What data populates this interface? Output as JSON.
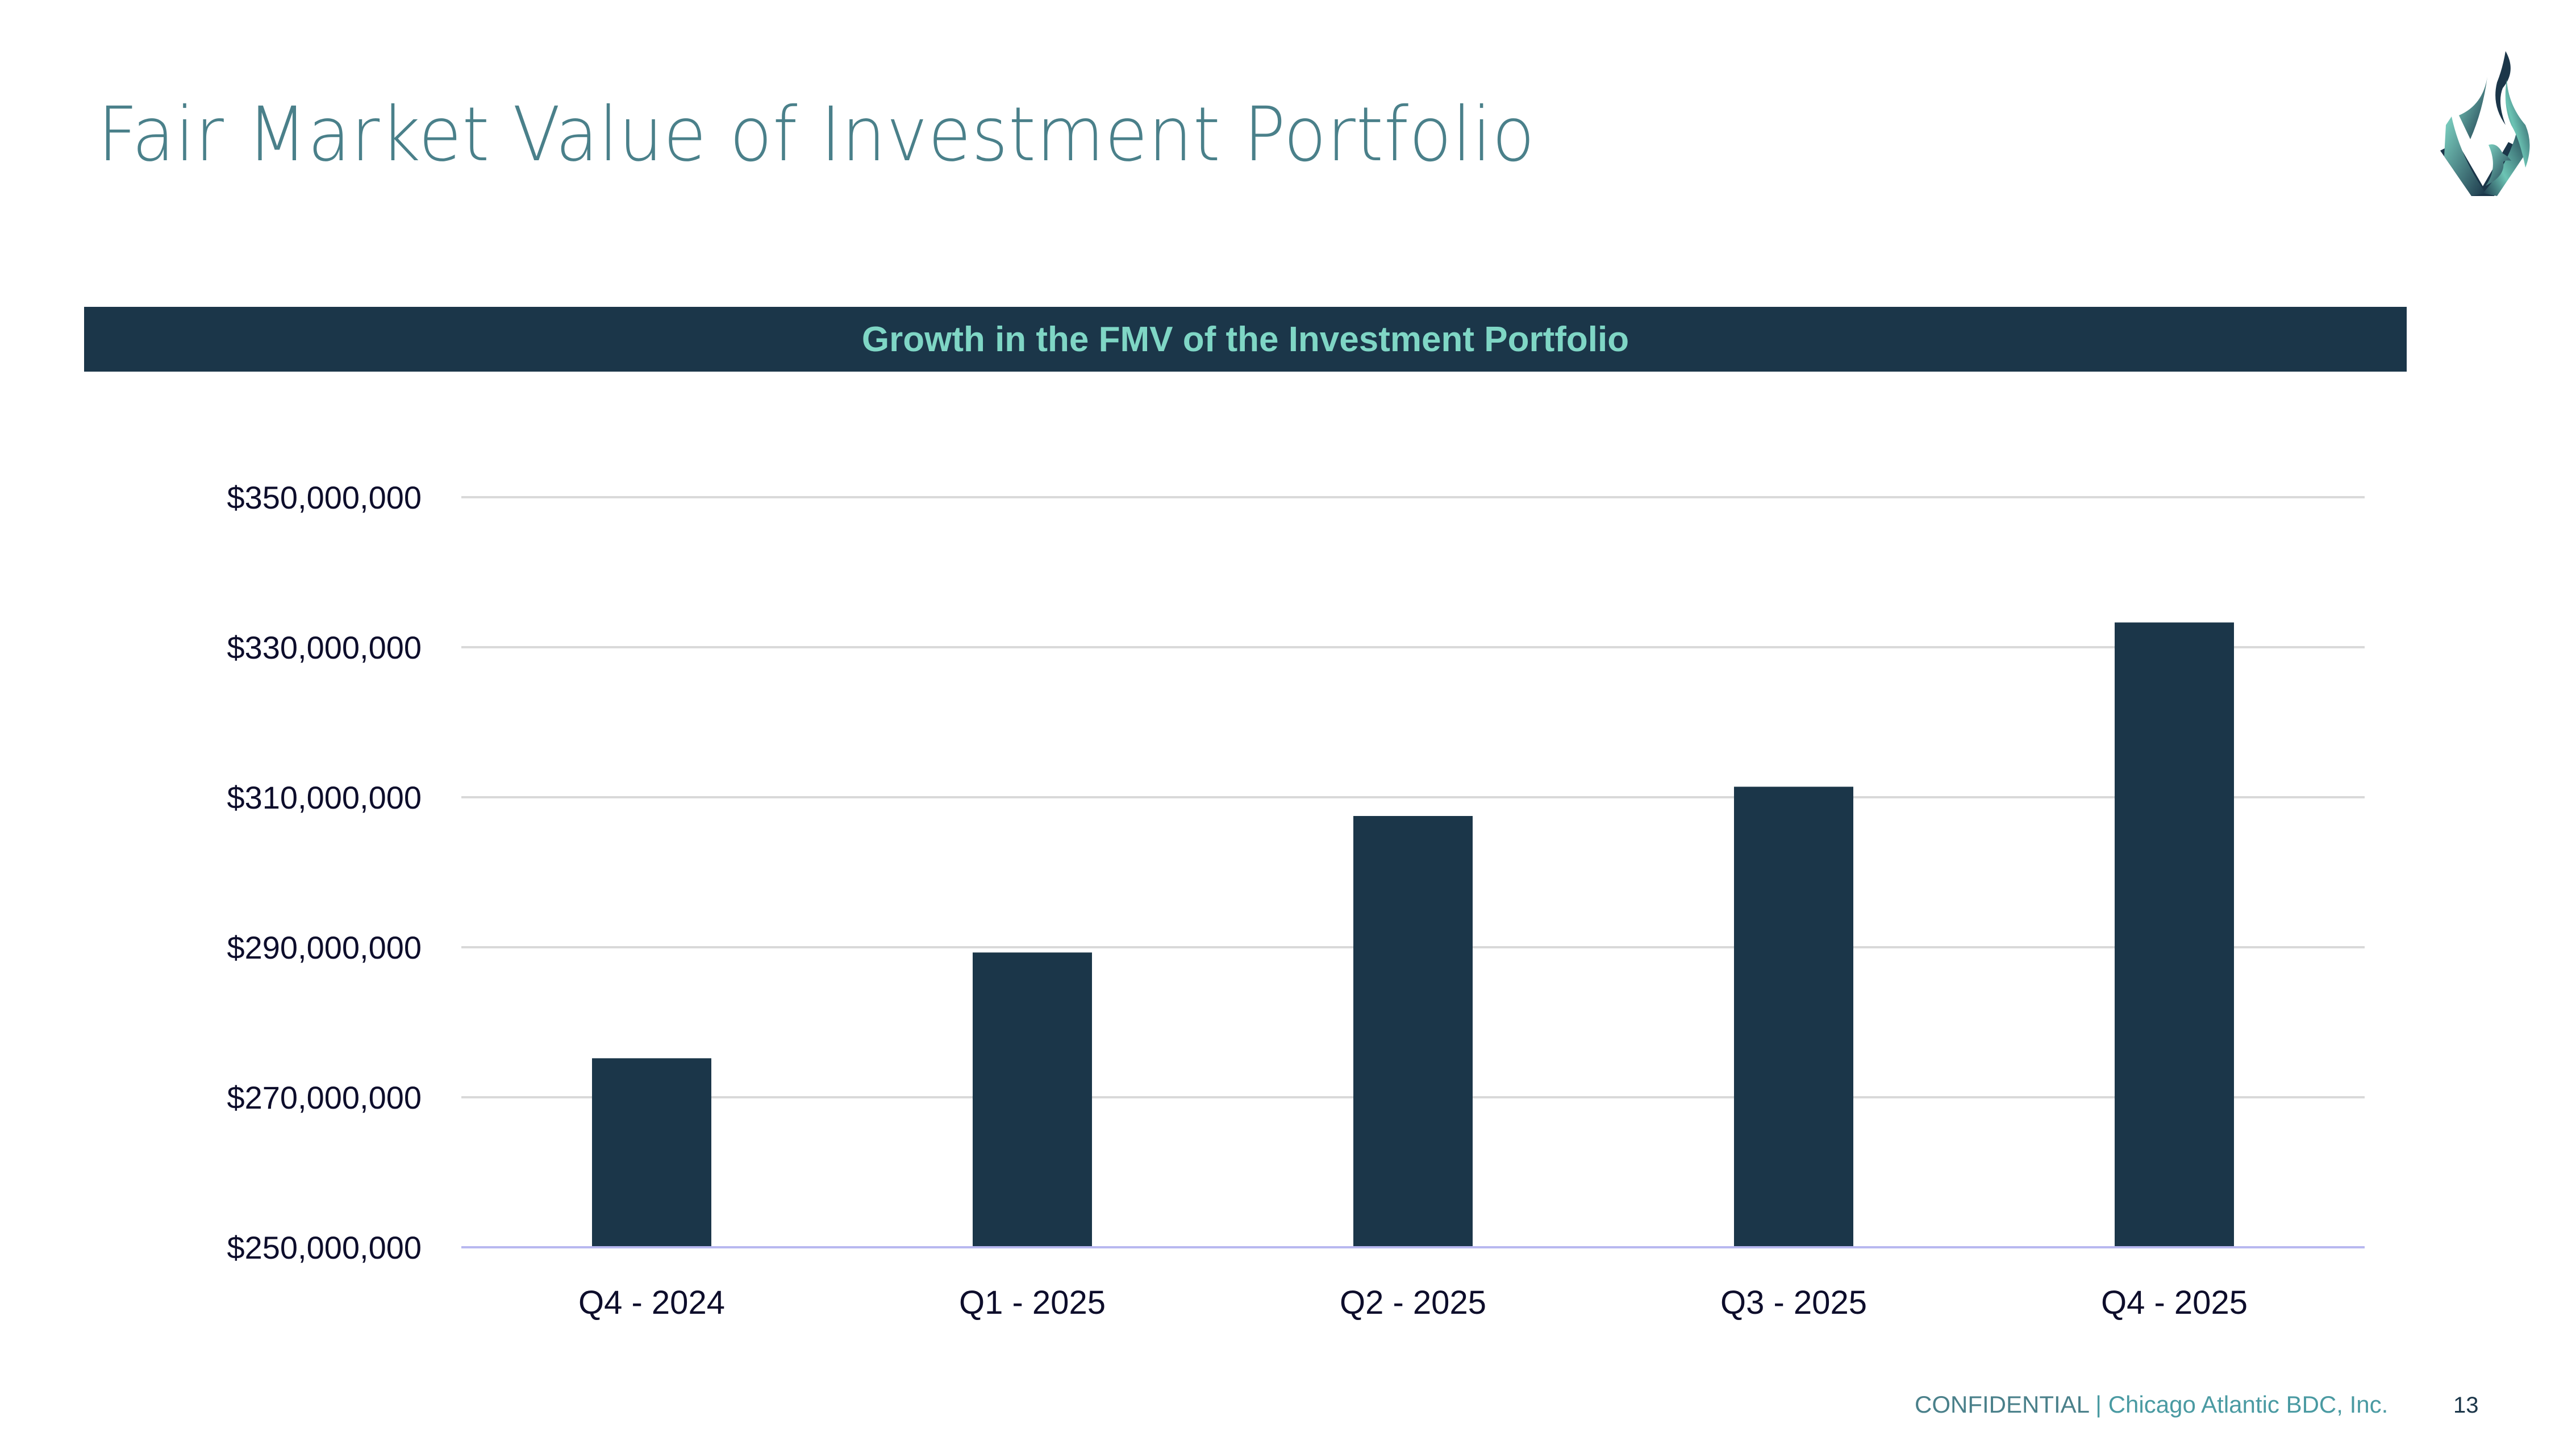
{
  "slide": {
    "title": "Fair Market Value of Investment Portfolio",
    "logo_icon": "phoenix-flame-logo-icon",
    "banner_title": "Growth in the FMV of the Investment Portfolio",
    "footer": {
      "confidential": "CONFIDENTIAL",
      "separator": " | ",
      "company": "Chicago Atlantic BDC, Inc.",
      "page_number": "13"
    },
    "colors": {
      "title": "#4a808a",
      "banner_bg": "#1b3649",
      "banner_text": "#7fd6c5",
      "bar": "#1b3649",
      "gridline": "#d9d9d9",
      "baseline": "#b8b8f0"
    }
  },
  "chart_data": {
    "type": "bar",
    "title": "Growth in the FMV of the Investment Portfolio",
    "xlabel": "",
    "ylabel": "",
    "categories": [
      "Q4 - 2024",
      "Q1 - 2025",
      "Q2 - 2025",
      "Q3 - 2025",
      "Q4 - 2025"
    ],
    "values": [
      275200000,
      289300000,
      307500000,
      311400000,
      333300000
    ],
    "ylim": [
      250000000,
      350000000
    ],
    "yticks": [
      250000000,
      270000000,
      290000000,
      310000000,
      330000000,
      350000000
    ],
    "ytick_labels": [
      "$250,000,000",
      "$270,000,000",
      "$290,000,000",
      "$310,000,000",
      "$330,000,000",
      "$350,000,000"
    ],
    "grid": true,
    "legend": "none"
  }
}
